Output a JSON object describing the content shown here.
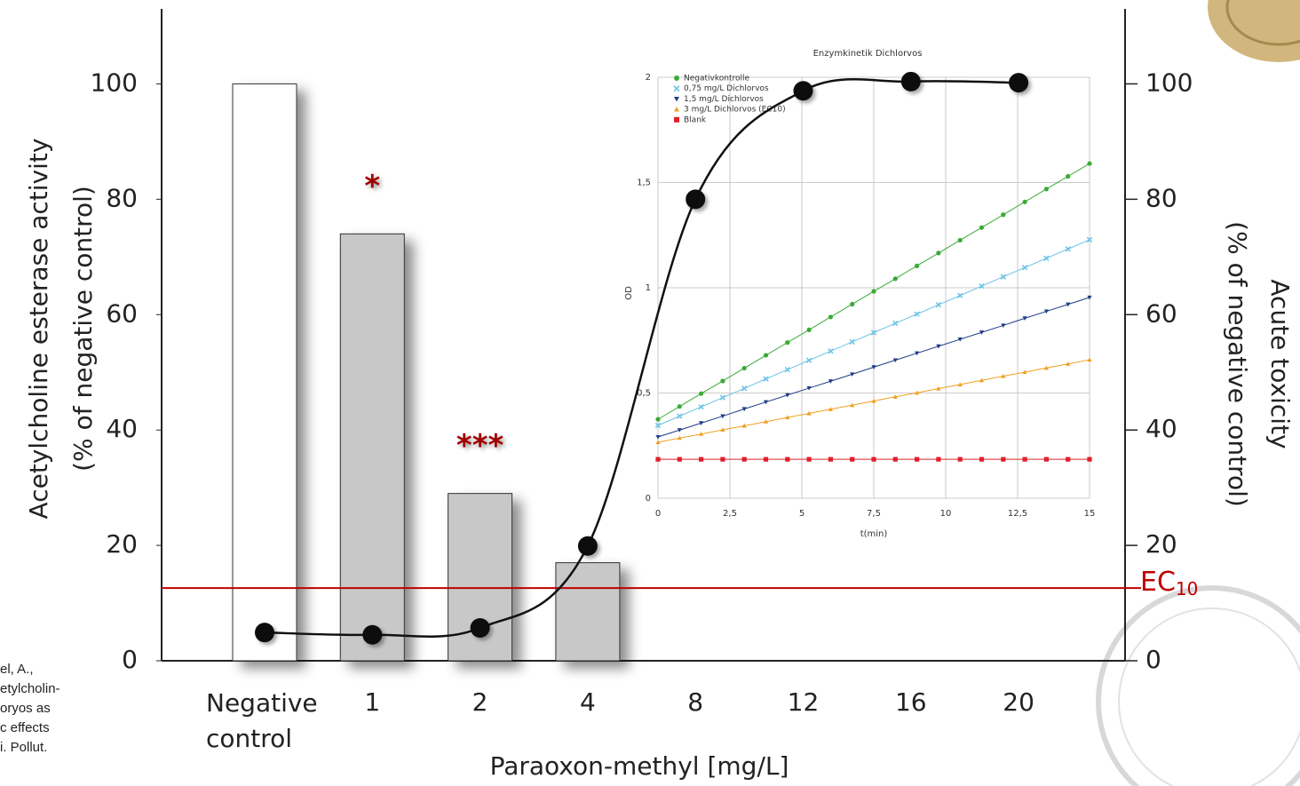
{
  "citation_fragment": [
    "el, A.,",
    "etylcholin-",
    "oryos as",
    "c effects",
    "i. Pollut."
  ],
  "chart_data": [
    {
      "type": "bar",
      "xlabel": "Paraoxon-methyl [mg/L]",
      "ylabel": [
        "Acetylcholine esterase activity",
        "(% of negative control)"
      ],
      "y2label": [
        "Acute toxicity",
        "(% of negative control)"
      ],
      "categories": [
        "Negative control",
        "1",
        "2",
        "4",
        "8",
        "12",
        "16",
        "20"
      ],
      "series": [
        {
          "type": "bar",
          "values": [
            100,
            74,
            29,
            17,
            null,
            null,
            null,
            null
          ],
          "colors": [
            "#ffffff",
            "#c8c8c8",
            "#c8c8c8",
            "#c8c8c8",
            null,
            null,
            null,
            null
          ]
        },
        {
          "type": "line",
          "axis": "y2",
          "color": "#111111",
          "values": [
            4.9,
            4.5,
            5.7,
            19.9,
            80,
            98.8,
            100.4,
            100.2
          ]
        }
      ],
      "significance": [
        null,
        "*",
        "***",
        null,
        null,
        null,
        null,
        null
      ],
      "significance_color": "#a00000",
      "ylim": [
        0,
        113
      ],
      "yticks": [
        0,
        20,
        40,
        60,
        80,
        100
      ],
      "y2lim": [
        0,
        113
      ],
      "y2ticks": [
        0,
        20,
        40,
        60,
        80,
        100
      ],
      "reference_line": {
        "value": 12.6,
        "label": "EC",
        "label_sub": "10",
        "color": "#c00000"
      }
    },
    {
      "type": "line",
      "title": "Enzymkinetik Dichlorvos",
      "xlabel": "t(min)",
      "ylabel": "OD",
      "x": [
        0,
        0.75,
        1.5,
        2.25,
        3,
        3.75,
        4.5,
        5.25,
        6,
        6.75,
        7.5,
        8.25,
        9,
        9.75,
        10.5,
        11.25,
        12,
        12.75,
        13.5,
        14.25,
        15
      ],
      "xlim": [
        0,
        15
      ],
      "xticks": [
        0,
        {
          "value": 2.5,
          "label": "2,5"
        },
        5,
        {
          "value": 7.5,
          "label": "7,5"
        },
        10,
        {
          "value": 12.5,
          "label": "12,5"
        },
        15
      ],
      "ylim": [
        0,
        2
      ],
      "yticks": [
        0,
        {
          "value": 0.5,
          "label": "0,5"
        },
        1,
        {
          "value": 1.5,
          "label": "1,5"
        },
        2
      ],
      "grid": true,
      "series": [
        {
          "name": "Negativkontrolle",
          "color": "#3aaa35",
          "marker": "circle",
          "values": [
            0.375,
            0.436,
            0.497,
            0.557,
            0.618,
            0.679,
            0.74,
            0.8,
            0.861,
            0.922,
            0.983,
            1.043,
            1.104,
            1.165,
            1.226,
            1.286,
            1.347,
            1.408,
            1.469,
            1.529,
            1.59
          ]
        },
        {
          "name": "0,75 mg/L Dichlorvos",
          "color": "#6cc3e6",
          "marker": "x",
          "values": [
            0.346,
            0.39,
            0.434,
            0.478,
            0.522,
            0.567,
            0.611,
            0.655,
            0.699,
            0.743,
            0.787,
            0.831,
            0.875,
            0.919,
            0.963,
            1.008,
            1.052,
            1.096,
            1.14,
            1.184,
            1.228
          ]
        },
        {
          "name": "1,5 mg/L Dichlorvos",
          "color": "#1f3c88",
          "marker": "triangle-down",
          "values": [
            0.291,
            0.324,
            0.357,
            0.39,
            0.424,
            0.457,
            0.49,
            0.523,
            0.556,
            0.589,
            0.623,
            0.656,
            0.689,
            0.722,
            0.755,
            0.788,
            0.821,
            0.855,
            0.888,
            0.921,
            0.954
          ]
        },
        {
          "name": "3 mg/L Dichlorvos (EC10)",
          "color": "#f0a020",
          "marker": "triangle-up",
          "values": [
            0.266,
            0.286,
            0.305,
            0.325,
            0.344,
            0.364,
            0.384,
            0.403,
            0.423,
            0.442,
            0.462,
            0.482,
            0.501,
            0.521,
            0.54,
            0.56,
            0.58,
            0.599,
            0.619,
            0.638,
            0.658
          ]
        },
        {
          "name": "Blank",
          "color": "#e0202a",
          "marker": "square",
          "values": [
            0.185,
            0.185,
            0.185,
            0.185,
            0.185,
            0.185,
            0.185,
            0.185,
            0.185,
            0.185,
            0.185,
            0.185,
            0.185,
            0.185,
            0.185,
            0.185,
            0.185,
            0.185,
            0.185,
            0.185,
            0.185
          ]
        }
      ]
    }
  ]
}
